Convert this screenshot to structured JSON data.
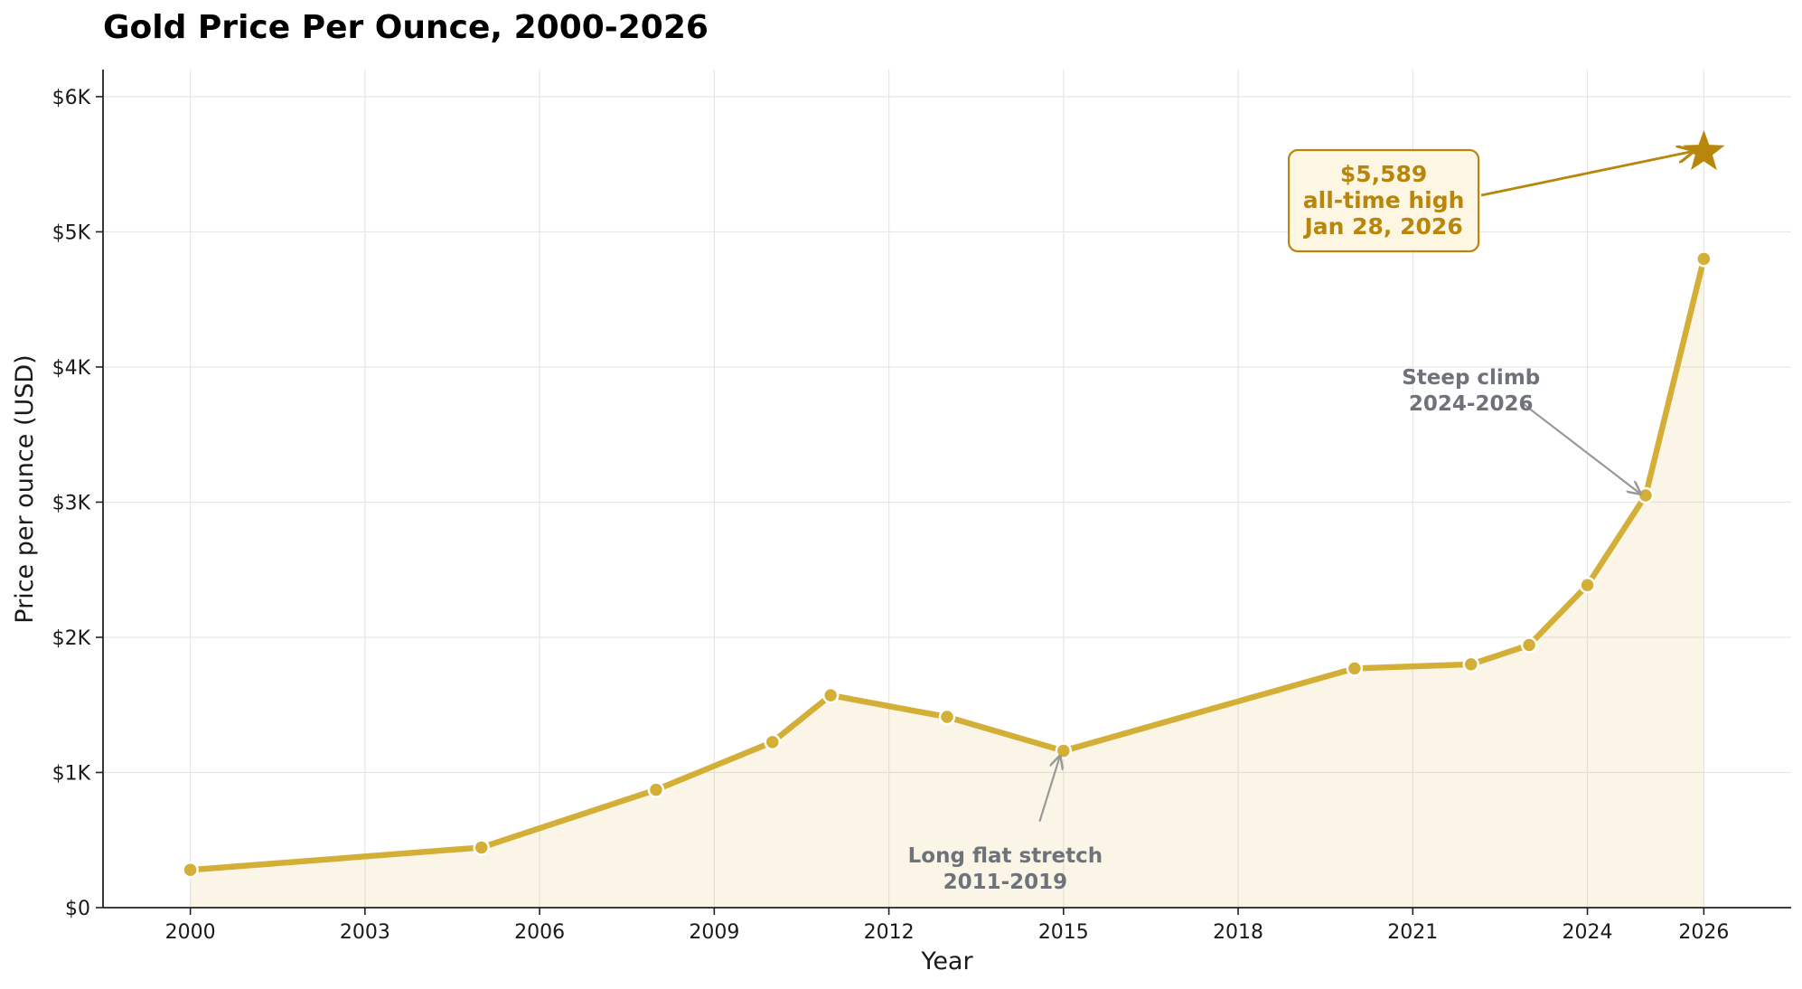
{
  "chart_data": {
    "type": "line",
    "title": "Gold Price Per Ounce, 2000-2026",
    "xlabel": "Year",
    "ylabel": "Price per ounce (USD)",
    "xlim": [
      1998.5,
      2027.5
    ],
    "ylim": [
      0,
      6200
    ],
    "x_ticks": [
      2000,
      2003,
      2006,
      2009,
      2012,
      2015,
      2018,
      2021,
      2024,
      2026
    ],
    "x_tick_labels": [
      "2000",
      "2003",
      "2006",
      "2009",
      "2012",
      "2015",
      "2018",
      "2021",
      "2024",
      "2026"
    ],
    "y_ticks": [
      0,
      1000,
      2000,
      3000,
      4000,
      5000,
      6000
    ],
    "y_tick_labels": [
      "$0",
      "$1K",
      "$2K",
      "$3K",
      "$4K",
      "$5K",
      "$6K"
    ],
    "grid": true,
    "area_fill": true,
    "series": [
      {
        "x": [
          2000,
          2005,
          2008,
          2010,
          2011,
          2013,
          2015,
          2020,
          2022,
          2023,
          2024,
          2025,
          2026
        ],
        "y": [
          279,
          445,
          872,
          1225,
          1571,
          1411,
          1160,
          1770,
          1800,
          1943,
          2386,
          3050,
          4800
        ],
        "color": "#d4af37"
      }
    ],
    "peak": {
      "x": 2026.0,
      "y": 5589,
      "marker": "star-icon",
      "color": "#b8860b"
    },
    "annotations": [
      {
        "id": "flat",
        "lines": [
          "Long flat stretch",
          "2011-2019"
        ],
        "text_x": 2014.0,
        "text_y": 290,
        "arrow_to_x": 2015,
        "arrow_to_y": 1160,
        "color": "#6e737a"
      },
      {
        "id": "climb",
        "lines": [
          "Steep climb",
          "2024-2026"
        ],
        "text_x": 2022.0,
        "text_y": 3830,
        "arrow_to_x": 2025,
        "arrow_to_y": 3050,
        "color": "#6e737a"
      },
      {
        "id": "ath",
        "lines": [
          "$5,589",
          "all-time high",
          "Jan 28, 2026"
        ],
        "text_x": 2020.5,
        "text_y": 5190,
        "arrow_to_x": 2026.0,
        "arrow_to_y": 5589,
        "color": "#b8860b",
        "box_fill": "#fdf6e3"
      }
    ]
  }
}
